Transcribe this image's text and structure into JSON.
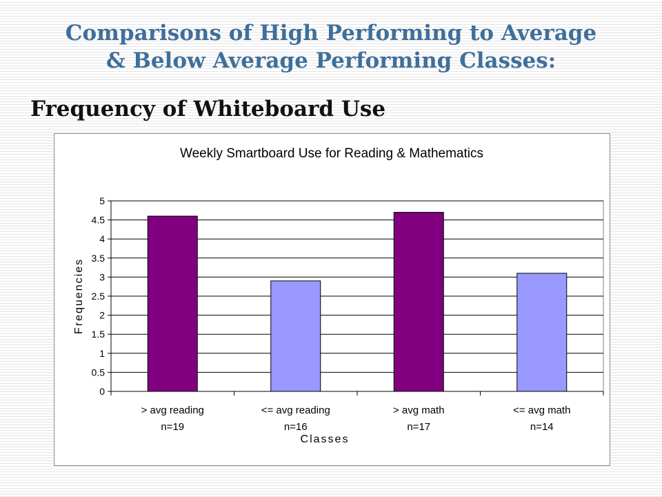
{
  "slide": {
    "title_line1": "Comparisons of High Performing to Average",
    "title_line2": "& Below Average Performing Classes:",
    "subtitle": "Frequency of Whiteboard Use"
  },
  "colors": {
    "title": "#3f6f9b",
    "high": "#800080",
    "avg": "#9999ff",
    "plot_bg": "#ffffff"
  },
  "chart_data": {
    "type": "bar",
    "title": "Weekly Smartboard Use for Reading & Mathematics",
    "xlabel": "Classes",
    "ylabel": "Frequencies",
    "ylim": [
      0,
      5
    ],
    "yticks": [
      "0",
      "0.5",
      "1",
      "1.5",
      "2",
      "2.5",
      "3",
      "3.5",
      "4",
      "4.5",
      "5"
    ],
    "grid": true,
    "categories": [
      "> avg reading",
      "<= avg reading",
      "> avg math",
      "<= avg math"
    ],
    "sample_sizes": [
      "n=19",
      "n=16",
      "n=17",
      "n=14"
    ],
    "values": [
      4.6,
      2.9,
      4.7,
      3.1
    ],
    "bar_colors": [
      "#800080",
      "#9999ff",
      "#800080",
      "#9999ff"
    ]
  }
}
